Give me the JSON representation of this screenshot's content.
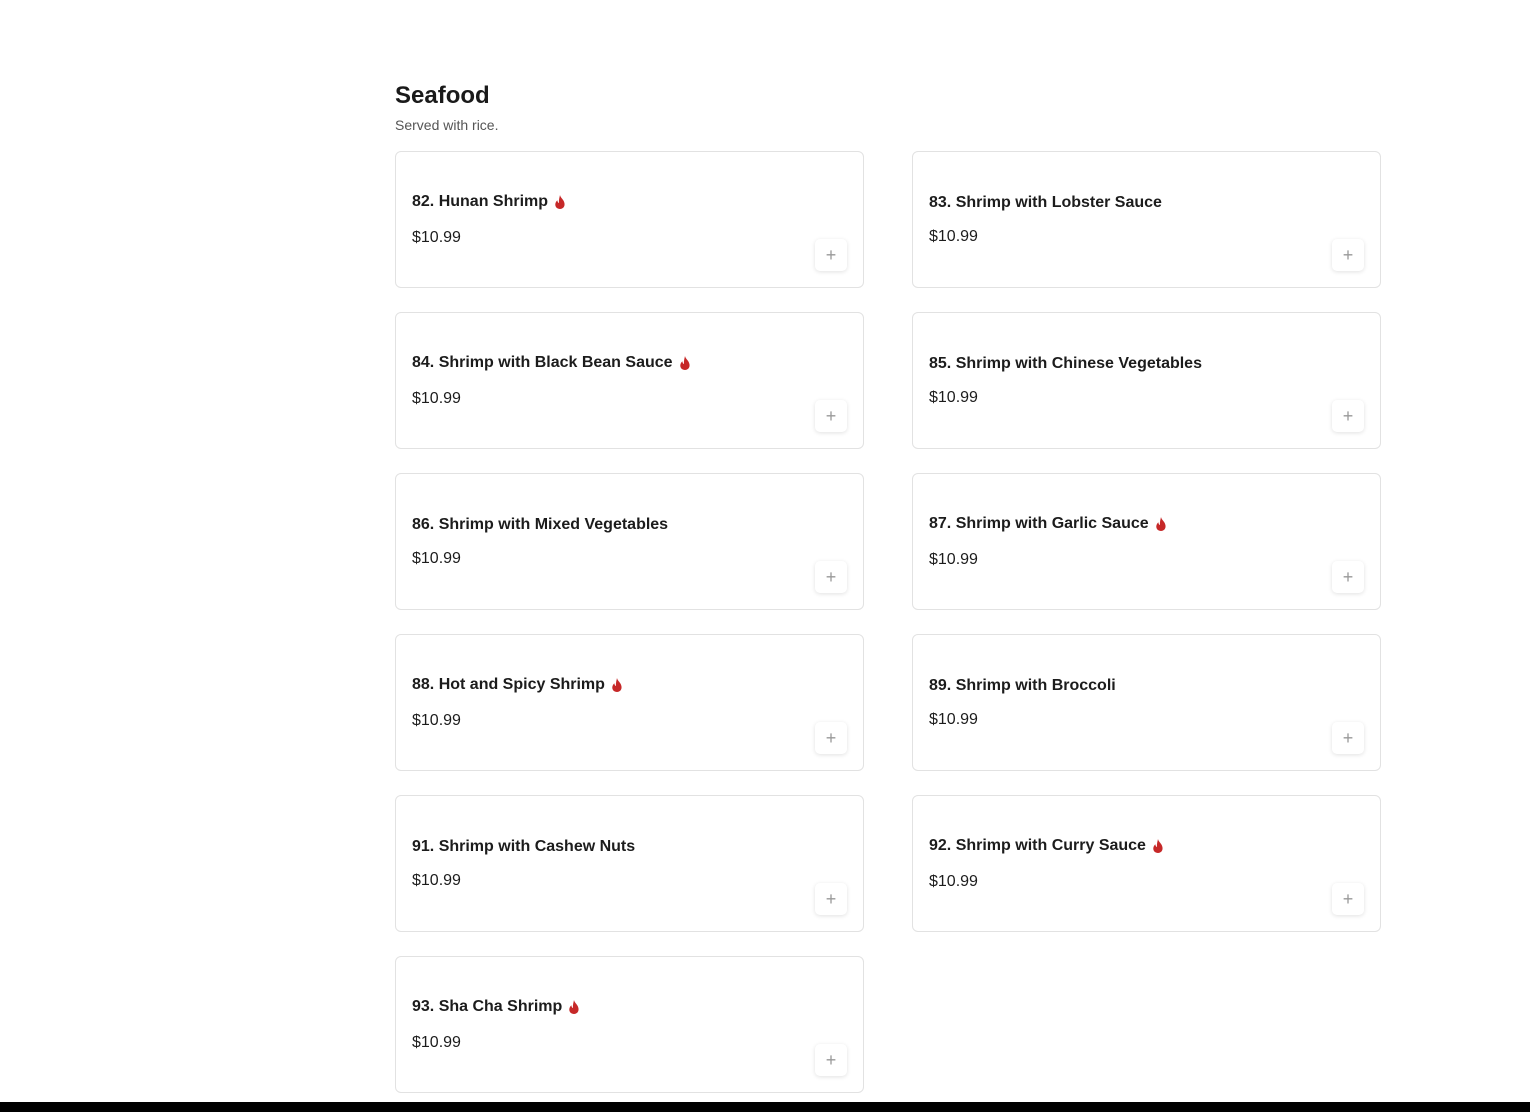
{
  "section": {
    "title": "Seafood",
    "subtitle": "Served with rice."
  },
  "colors": {
    "spicy_icon": "#c62828"
  },
  "add_button_label": "+",
  "items": [
    {
      "name": "82. Hunan Shrimp",
      "price": "$10.99",
      "spicy": true
    },
    {
      "name": "83. Shrimp with Lobster Sauce",
      "price": "$10.99",
      "spicy": false
    },
    {
      "name": "84. Shrimp with Black Bean Sauce",
      "price": "$10.99",
      "spicy": true
    },
    {
      "name": "85. Shrimp with Chinese Vegetables",
      "price": "$10.99",
      "spicy": false
    },
    {
      "name": "86. Shrimp with Mixed Vegetables",
      "price": "$10.99",
      "spicy": false
    },
    {
      "name": "87. Shrimp with Garlic Sauce",
      "price": "$10.99",
      "spicy": true
    },
    {
      "name": "88. Hot and Spicy Shrimp",
      "price": "$10.99",
      "spicy": true
    },
    {
      "name": "89. Shrimp with Broccoli",
      "price": "$10.99",
      "spicy": false
    },
    {
      "name": "91. Shrimp with Cashew Nuts",
      "price": "$10.99",
      "spicy": false
    },
    {
      "name": "92. Shrimp with Curry Sauce",
      "price": "$10.99",
      "spicy": true
    },
    {
      "name": "93. Sha Cha Shrimp",
      "price": "$10.99",
      "spicy": true
    }
  ]
}
